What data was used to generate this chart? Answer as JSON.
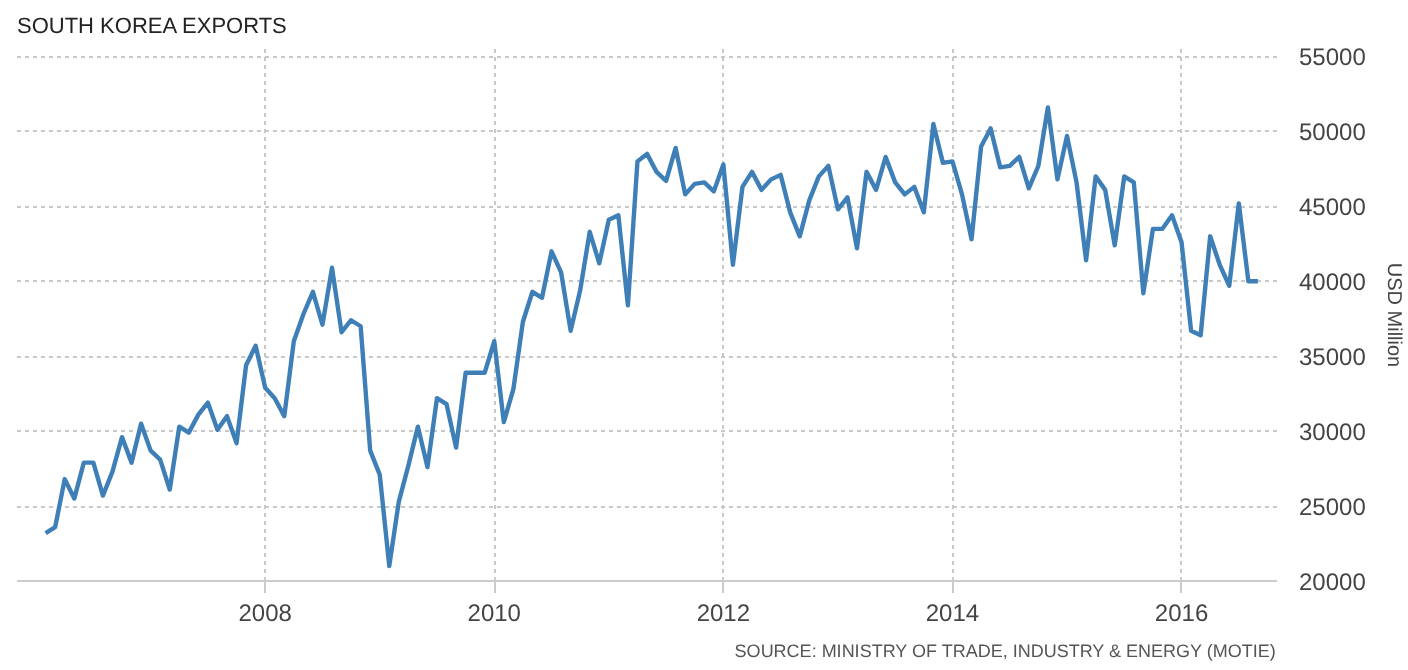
{
  "chart_data": {
    "type": "line",
    "title": "SOUTH KOREA EXPORTS",
    "ylabel": "USD Million",
    "annotations": [
      "SOURCE: MINISTRY OF TRADE, INDUSTRY & ENERGY (MOTIE)"
    ],
    "x": [
      "2006-02",
      "2006-03",
      "2006-04",
      "2006-05",
      "2006-06",
      "2006-07",
      "2006-08",
      "2006-09",
      "2006-10",
      "2006-11",
      "2006-12",
      "2007-01",
      "2007-02",
      "2007-03",
      "2007-04",
      "2007-05",
      "2007-06",
      "2007-07",
      "2007-08",
      "2007-09",
      "2007-10",
      "2007-11",
      "2007-12",
      "2008-01",
      "2008-02",
      "2008-03",
      "2008-04",
      "2008-05",
      "2008-06",
      "2008-07",
      "2008-08",
      "2008-09",
      "2008-10",
      "2008-11",
      "2008-12",
      "2009-01",
      "2009-02",
      "2009-03",
      "2009-04",
      "2009-05",
      "2009-06",
      "2009-07",
      "2009-08",
      "2009-09",
      "2009-10",
      "2009-11",
      "2009-12",
      "2010-01",
      "2010-02",
      "2010-03",
      "2010-04",
      "2010-05",
      "2010-06",
      "2010-07",
      "2010-08",
      "2010-09",
      "2010-10",
      "2010-11",
      "2010-12",
      "2011-01",
      "2011-02",
      "2011-03",
      "2011-04",
      "2011-05",
      "2011-06",
      "2011-07",
      "2011-08",
      "2011-09",
      "2011-10",
      "2011-11",
      "2011-12",
      "2012-01",
      "2012-02",
      "2012-03",
      "2012-04",
      "2012-05",
      "2012-06",
      "2012-07",
      "2012-08",
      "2012-09",
      "2012-10",
      "2012-11",
      "2012-12",
      "2013-01",
      "2013-02",
      "2013-03",
      "2013-04",
      "2013-05",
      "2013-06",
      "2013-07",
      "2013-08",
      "2013-09",
      "2013-10",
      "2013-11",
      "2013-12",
      "2014-01",
      "2014-02",
      "2014-03",
      "2014-04",
      "2014-05",
      "2014-06",
      "2014-07",
      "2014-08",
      "2014-09",
      "2014-10",
      "2014-11",
      "2014-12",
      "2015-01",
      "2015-02",
      "2015-03",
      "2015-04",
      "2015-05",
      "2015-06",
      "2015-07",
      "2015-08",
      "2015-09",
      "2015-10",
      "2015-11",
      "2015-12",
      "2016-01",
      "2016-02",
      "2016-03",
      "2016-04",
      "2016-05",
      "2016-06",
      "2016-07",
      "2016-08",
      "2016-09"
    ],
    "series": [
      {
        "color": "#3f7fb8",
        "values": [
          23200,
          23600,
          26800,
          25500,
          27900,
          27900,
          25700,
          27300,
          29600,
          27900,
          30500,
          28700,
          28100,
          26100,
          30300,
          29900,
          31100,
          31900,
          30100,
          31000,
          29200,
          34400,
          35700,
          32900,
          32200,
          31000,
          36000,
          37800,
          39300,
          37100,
          40900,
          36600,
          37400,
          37000,
          28700,
          27100,
          21000,
          25300,
          27700,
          30300,
          27600,
          32200,
          31800,
          28900,
          33900,
          33900,
          33900,
          36000,
          30600,
          32800,
          37300,
          39300,
          38900,
          42000,
          40600,
          36700,
          39400,
          43300,
          41200,
          44100,
          44400,
          38400,
          48000,
          48500,
          47300,
          46700,
          48900,
          45800,
          46500,
          46600,
          46000,
          47800,
          41100,
          46300,
          47300,
          46100,
          46800,
          47100,
          44600,
          43000,
          45400,
          47000,
          47700,
          44800,
          45600,
          42200,
          47300,
          46100,
          48300,
          46600,
          45800,
          46300,
          44600,
          50500,
          47900,
          48000,
          45800,
          42800,
          49000,
          50200,
          47600,
          47700,
          48300,
          46200,
          47700,
          51600,
          46800,
          49700,
          46600,
          41400,
          47000,
          46100,
          42400,
          47000,
          46600,
          39200,
          43500,
          43500,
          44400,
          42600,
          36700,
          36400,
          43000,
          41100,
          39700,
          45200,
          40000,
          40000
        ]
      }
    ],
    "xlim": [
      "2005-11",
      "2016-11"
    ],
    "xticks": [
      "2008",
      "2010",
      "2012",
      "2014",
      "2016"
    ],
    "ylim": [
      20000,
      55500
    ],
    "yticks": [
      20000,
      25000,
      30000,
      35000,
      40000,
      45000,
      50000,
      55000
    ],
    "grid": true,
    "line_style": "solid",
    "marker": "none"
  }
}
